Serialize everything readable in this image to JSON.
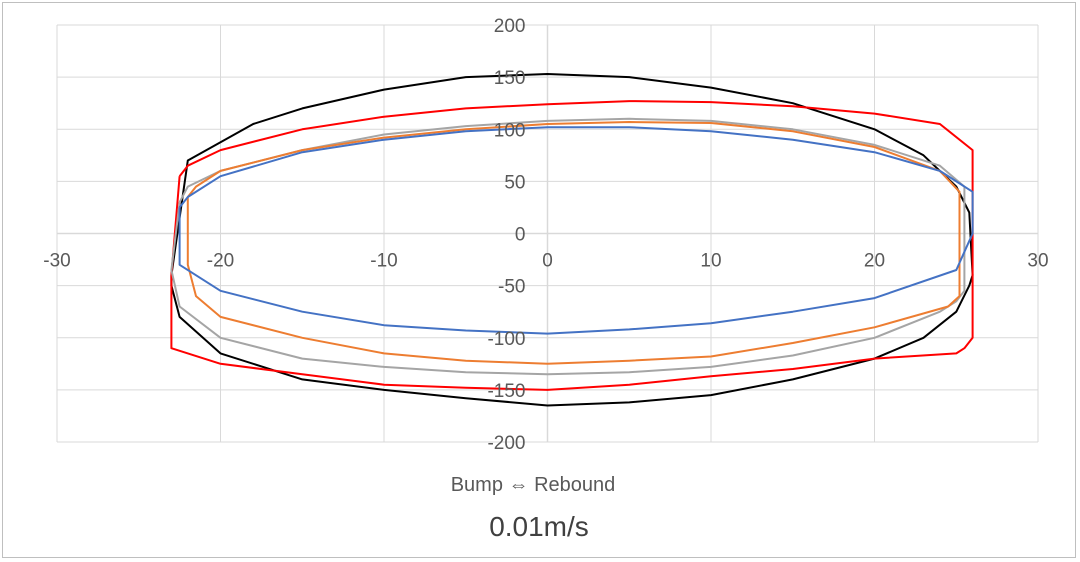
{
  "chart_data": {
    "type": "line",
    "title": "0.01m/s",
    "xlabel": "Bump ⇔ Rebound",
    "ylabel": "",
    "xlim": [
      -30,
      30
    ],
    "ylim": [
      -200,
      200
    ],
    "xticks": [
      -30,
      -20,
      -10,
      0,
      10,
      20,
      30
    ],
    "yticks": [
      -200,
      -150,
      -100,
      -50,
      0,
      50,
      100,
      150,
      200
    ],
    "grid": true,
    "legend": "none",
    "series": [
      {
        "name": "black",
        "color": "#000000",
        "x": [
          -23,
          -22,
          -18,
          -15,
          -10,
          -5,
          0,
          5,
          10,
          15,
          20,
          23,
          25,
          25.8,
          26,
          25.8,
          25,
          23,
          20,
          15,
          10,
          5,
          0,
          -5,
          -10,
          -15,
          -20,
          -22.5,
          -23,
          -23
        ],
        "y": [
          -40,
          70,
          105,
          120,
          138,
          150,
          153,
          150,
          140,
          125,
          100,
          75,
          45,
          20,
          -40,
          -50,
          -75,
          -100,
          -120,
          -140,
          -155,
          -162,
          -165,
          -158,
          -150,
          -140,
          -115,
          -80,
          -50,
          -40
        ]
      },
      {
        "name": "red",
        "color": "#ff0000",
        "x": [
          -22.5,
          -22,
          -20,
          -15,
          -10,
          -5,
          0,
          5,
          10,
          15,
          20,
          24,
          26,
          26,
          25.5,
          25,
          20,
          15,
          10,
          5,
          0,
          -5,
          -10,
          -15,
          -20,
          -23,
          -23,
          -22.5
        ],
        "y": [
          55,
          65,
          80,
          100,
          112,
          120,
          124,
          127,
          126,
          122,
          115,
          105,
          80,
          -100,
          -110,
          -115,
          -120,
          -130,
          -137,
          -145,
          -150,
          -148,
          -145,
          -135,
          -125,
          -110,
          -40,
          55
        ]
      },
      {
        "name": "gray",
        "color": "#a5a5a5",
        "x": [
          -22.5,
          -22,
          -20,
          -15,
          -10,
          -5,
          0,
          5,
          10,
          15,
          20,
          24,
          25.5,
          25.5,
          25,
          24,
          20,
          15,
          10,
          5,
          0,
          -5,
          -10,
          -15,
          -20,
          -22.5,
          -23,
          -22.5
        ],
        "y": [
          30,
          45,
          60,
          80,
          95,
          103,
          108,
          110,
          108,
          100,
          85,
          65,
          45,
          -55,
          -65,
          -75,
          -100,
          -117,
          -128,
          -133,
          -135,
          -133,
          -128,
          -120,
          -100,
          -70,
          -35,
          30
        ]
      },
      {
        "name": "orange",
        "color": "#ed7d31",
        "x": [
          -22,
          -21.5,
          -20,
          -15,
          -10,
          -5,
          0,
          5,
          10,
          15,
          20,
          24,
          25.2,
          25.2,
          24.5,
          20,
          15,
          10,
          5,
          0,
          -5,
          -10,
          -15,
          -20,
          -21.5,
          -22,
          -22
        ],
        "y": [
          35,
          45,
          60,
          80,
          92,
          100,
          105,
          107,
          106,
          98,
          83,
          60,
          40,
          -60,
          -70,
          -90,
          -105,
          -118,
          -122,
          -125,
          -122,
          -115,
          -100,
          -80,
          -60,
          -30,
          35
        ]
      },
      {
        "name": "blue",
        "color": "#4472c4",
        "x": [
          -22.5,
          -22,
          -20,
          -15,
          -10,
          -5,
          0,
          5,
          10,
          15,
          20,
          24,
          26,
          26,
          25,
          20,
          15,
          10,
          5,
          0,
          -5,
          -10,
          -15,
          -20,
          -22.5,
          -22.5
        ],
        "y": [
          25,
          35,
          55,
          78,
          90,
          98,
          102,
          102,
          98,
          90,
          78,
          60,
          40,
          0,
          -35,
          -62,
          -75,
          -86,
          -92,
          -96,
          -93,
          -88,
          -75,
          -55,
          -30,
          25
        ]
      }
    ]
  }
}
